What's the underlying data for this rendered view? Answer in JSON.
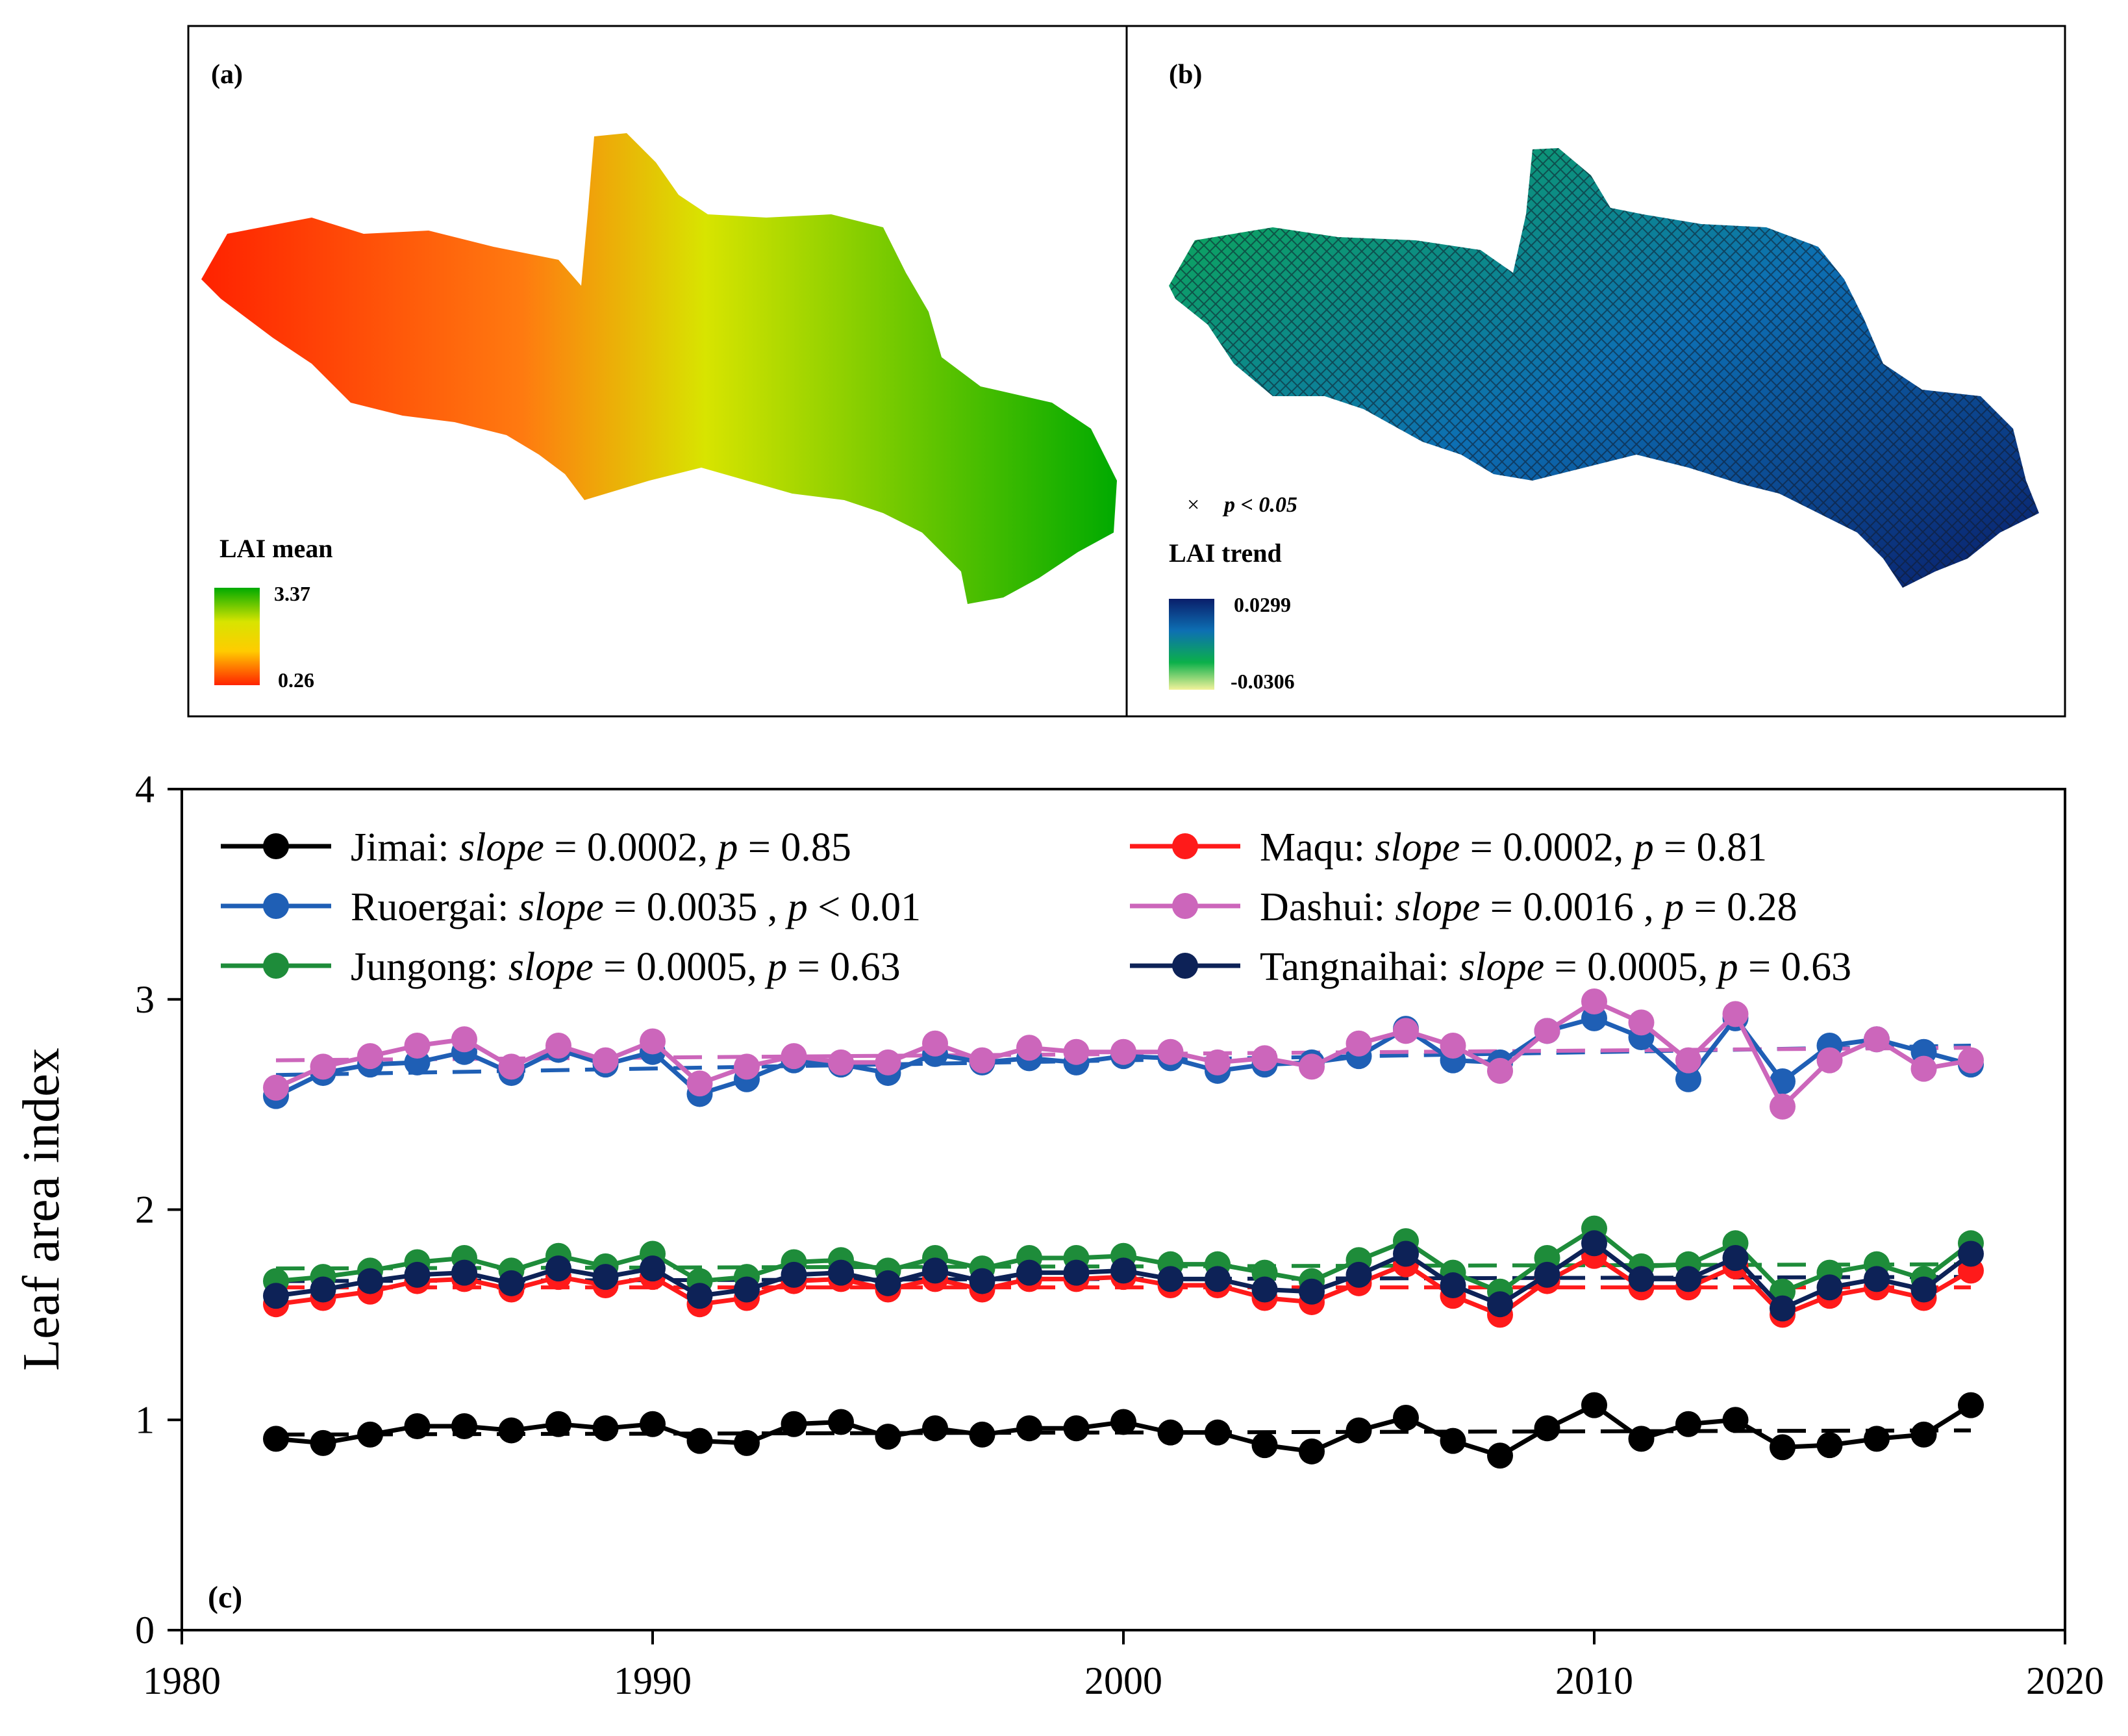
{
  "panel_a": {
    "label": "(a)",
    "legend_title": "LAI mean",
    "max_label": "3.37",
    "min_label": "0.26",
    "colors": [
      "#00aa00",
      "#d8e400",
      "#ffcc00",
      "#ff2200"
    ]
  },
  "panel_b": {
    "label": "(b)",
    "sig_marker": "×",
    "sig_label": "p < 0.05",
    "legend_title": "LAI trend",
    "max_label": "0.0299",
    "min_label": "-0.0306",
    "colors": [
      "#0a1e6a",
      "#0d6fb3",
      "#0bb04a",
      "#f2f29a"
    ]
  },
  "chart_data": {
    "type": "line",
    "panel_label": "(c)",
    "title": "",
    "xlabel": "",
    "ylabel": "Leaf area index",
    "xlim": [
      1980,
      2020
    ],
    "ylim": [
      0,
      4
    ],
    "xticks": [
      "1980",
      "1990",
      "2000",
      "2010",
      "2020"
    ],
    "yticks": [
      "0",
      "1",
      "2",
      "3",
      "4"
    ],
    "x": [
      1982,
      1983,
      1984,
      1985,
      1986,
      1987,
      1988,
      1989,
      1990,
      1991,
      1992,
      1993,
      1994,
      1995,
      1996,
      1997,
      1998,
      1999,
      2000,
      2001,
      2002,
      2003,
      2004,
      2005,
      2006,
      2007,
      2008,
      2009,
      2010,
      2011,
      2012,
      2013,
      2014,
      2015,
      2016,
      2017,
      2018
    ],
    "series": [
      {
        "name": "Jimai",
        "color": "#000000",
        "legend_label": {
          "name": "Jimai:",
          "stat": "slope",
          "eq1": " = 0.0002, ",
          "p": "p",
          "eq2": " = 0.85"
        },
        "values": [
          0.91,
          0.89,
          0.93,
          0.97,
          0.97,
          0.95,
          0.98,
          0.96,
          0.98,
          0.9,
          0.89,
          0.98,
          0.99,
          0.92,
          0.96,
          0.93,
          0.96,
          0.96,
          0.99,
          0.94,
          0.94,
          0.88,
          0.85,
          0.95,
          1.01,
          0.9,
          0.83,
          0.96,
          1.07,
          0.91,
          0.98,
          1.0,
          0.87,
          0.88,
          0.91,
          0.93,
          1.07
        ],
        "trend": [
          0.93,
          0.95
        ]
      },
      {
        "name": "Maqu",
        "color": "#ff1a1a",
        "legend_label": {
          "name": "Maqu:",
          "stat": "slope",
          "eq1": " = 0.0002, ",
          "p": "p",
          "eq2": " = 0.81"
        },
        "values": [
          1.55,
          1.58,
          1.61,
          1.66,
          1.67,
          1.62,
          1.68,
          1.64,
          1.68,
          1.55,
          1.58,
          1.66,
          1.67,
          1.62,
          1.67,
          1.62,
          1.67,
          1.67,
          1.68,
          1.64,
          1.64,
          1.58,
          1.56,
          1.65,
          1.74,
          1.59,
          1.5,
          1.66,
          1.78,
          1.63,
          1.63,
          1.73,
          1.5,
          1.59,
          1.63,
          1.58,
          1.71
        ],
        "trend": [
          1.63,
          1.63
        ]
      },
      {
        "name": "Ruoergai",
        "color": "#1f5fb5",
        "legend_label": {
          "name": "Ruoergai:",
          "stat": "slope",
          "eq1": " = 0.0035 , ",
          "p": "p",
          "eq2": " < 0.01"
        },
        "values": [
          2.54,
          2.65,
          2.69,
          2.7,
          2.75,
          2.65,
          2.76,
          2.69,
          2.75,
          2.55,
          2.62,
          2.71,
          2.69,
          2.65,
          2.74,
          2.7,
          2.72,
          2.7,
          2.73,
          2.72,
          2.66,
          2.69,
          2.7,
          2.73,
          2.86,
          2.71,
          2.7,
          2.85,
          2.91,
          2.82,
          2.62,
          2.91,
          2.61,
          2.78,
          2.81,
          2.75,
          2.69
        ],
        "trend": [
          2.64,
          2.78
        ]
      },
      {
        "name": "Dashui",
        "color": "#cc66bb",
        "legend_label": {
          "name": "Dashui:",
          "stat": "slope",
          "eq1": " = 0.0016 , ",
          "p": "p",
          "eq2": " = 0.28"
        },
        "values": [
          2.58,
          2.68,
          2.73,
          2.78,
          2.81,
          2.68,
          2.78,
          2.71,
          2.8,
          2.6,
          2.68,
          2.73,
          2.7,
          2.7,
          2.79,
          2.71,
          2.77,
          2.75,
          2.75,
          2.75,
          2.7,
          2.72,
          2.68,
          2.79,
          2.85,
          2.78,
          2.66,
          2.85,
          2.99,
          2.89,
          2.71,
          2.93,
          2.49,
          2.71,
          2.81,
          2.67,
          2.71
        ],
        "trend": [
          2.71,
          2.77
        ]
      },
      {
        "name": "Jungong",
        "color": "#1e8c3a",
        "legend_label": {
          "name": "Jungong:",
          "stat": "slope",
          "eq1": " = 0.0005, ",
          "p": "p",
          "eq2": " = 0.63"
        },
        "values": [
          1.66,
          1.68,
          1.71,
          1.75,
          1.77,
          1.71,
          1.78,
          1.73,
          1.79,
          1.66,
          1.68,
          1.75,
          1.76,
          1.71,
          1.77,
          1.72,
          1.77,
          1.77,
          1.78,
          1.74,
          1.74,
          1.7,
          1.66,
          1.76,
          1.85,
          1.7,
          1.61,
          1.77,
          1.91,
          1.73,
          1.74,
          1.84,
          1.61,
          1.7,
          1.74,
          1.67,
          1.84
        ],
        "trend": [
          1.72,
          1.74
        ]
      },
      {
        "name": "Tangnaihai",
        "color": "#0d2257",
        "legend_label": {
          "name": "Tangnaihai:",
          "stat": "slope",
          "eq1": " = 0.0005, ",
          "p": "p",
          "eq2": " = 0.63"
        },
        "values": [
          1.59,
          1.62,
          1.66,
          1.69,
          1.7,
          1.65,
          1.72,
          1.68,
          1.72,
          1.59,
          1.62,
          1.69,
          1.7,
          1.65,
          1.71,
          1.66,
          1.7,
          1.7,
          1.71,
          1.67,
          1.67,
          1.62,
          1.61,
          1.69,
          1.79,
          1.64,
          1.55,
          1.69,
          1.84,
          1.67,
          1.67,
          1.77,
          1.53,
          1.63,
          1.67,
          1.62,
          1.79
        ],
        "trend": [
          1.66,
          1.68
        ]
      }
    ],
    "legend_position": "top"
  }
}
